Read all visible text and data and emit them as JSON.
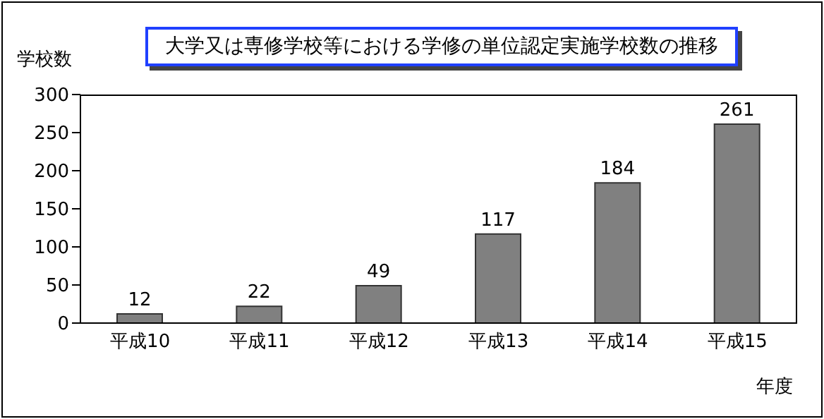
{
  "chart_data": {
    "type": "bar",
    "title": "大学又は専修学校等における学修の単位認定実施学校数の推移",
    "ylabel": "学校数",
    "xlabel": "年度",
    "categories": [
      "平成10",
      "平成11",
      "平成12",
      "平成13",
      "平成14",
      "平成15"
    ],
    "values": [
      12,
      22,
      49,
      117,
      184,
      261
    ],
    "color": "#808080",
    "ylim": [
      0,
      300
    ],
    "yticks": [
      0,
      50,
      100,
      150,
      200,
      250,
      300
    ],
    "grid": false,
    "data_labels": true
  }
}
